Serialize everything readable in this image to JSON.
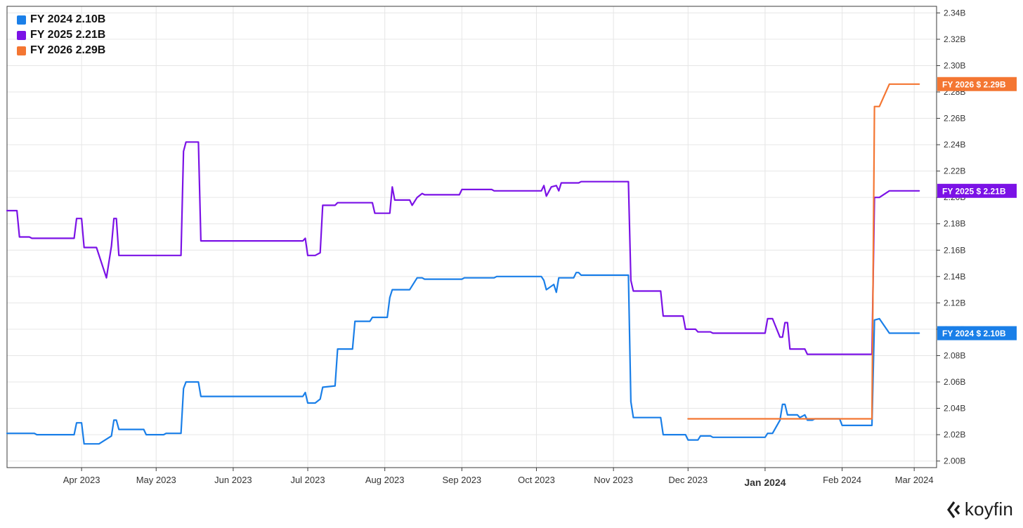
{
  "legend": [
    {
      "label": "FY 2024",
      "value": "2.10B",
      "color": "#1a7fe8"
    },
    {
      "label": "FY 2025",
      "value": "2.21B",
      "color": "#7b12e6"
    },
    {
      "label": "FY 2026",
      "value": "2.29B",
      "color": "#f47632"
    }
  ],
  "brand": {
    "name": "koyfin"
  },
  "chart_data": {
    "type": "line",
    "title": "",
    "xlabel": "",
    "ylabel": "",
    "ylim": [
      1.995,
      2.345
    ],
    "y_ticks": [
      "2.00B",
      "2.02B",
      "2.04B",
      "2.06B",
      "2.08B",
      "2.10B",
      "2.12B",
      "2.14B",
      "2.16B",
      "2.18B",
      "2.20B",
      "2.22B",
      "2.24B",
      "2.26B",
      "2.28B",
      "2.30B",
      "2.32B",
      "2.34B"
    ],
    "x_range": [
      "2023-03-02",
      "2024-03-10"
    ],
    "x_ticks": [
      {
        "date": "2023-04-01",
        "label": "Apr 2023"
      },
      {
        "date": "2023-05-01",
        "label": "May 2023"
      },
      {
        "date": "2023-06-01",
        "label": "Jun 2023"
      },
      {
        "date": "2023-07-01",
        "label": "Jul 2023"
      },
      {
        "date": "2023-08-01",
        "label": "Aug 2023"
      },
      {
        "date": "2023-09-01",
        "label": "Sep 2023"
      },
      {
        "date": "2023-10-01",
        "label": "Oct 2023"
      },
      {
        "date": "2023-11-01",
        "label": "Nov 2023"
      },
      {
        "date": "2023-12-01",
        "label": "Dec 2023"
      },
      {
        "date": "2024-01-01",
        "label": "Jan 2024",
        "bold": true
      },
      {
        "date": "2024-02-01",
        "label": "Feb 2024"
      },
      {
        "date": "2024-03-01",
        "label": "Mar 2024"
      }
    ],
    "grid": true,
    "legend_position": "top-left",
    "end_labels": [
      {
        "series": "FY 2026",
        "text": "FY 2026   $ 2.29B",
        "value": 2.286
      },
      {
        "series": "FY 2025",
        "text": "FY 2025   $ 2.21B",
        "value": 2.205
      },
      {
        "series": "FY 2024",
        "text": "FY 2024   $ 2.10B",
        "value": 2.097
      }
    ],
    "series": [
      {
        "name": "FY 2024",
        "color": "#1a7fe8",
        "points": [
          [
            "2023-03-02",
            2.021
          ],
          [
            "2023-03-13",
            2.021
          ],
          [
            "2023-03-14",
            2.02
          ],
          [
            "2023-03-29",
            2.02
          ],
          [
            "2023-03-30",
            2.029
          ],
          [
            "2023-04-01",
            2.029
          ],
          [
            "2023-04-02",
            2.013
          ],
          [
            "2023-04-08",
            2.013
          ],
          [
            "2023-04-13",
            2.019
          ],
          [
            "2023-04-14",
            2.031
          ],
          [
            "2023-04-15",
            2.031
          ],
          [
            "2023-04-16",
            2.024
          ],
          [
            "2023-04-26",
            2.024
          ],
          [
            "2023-04-27",
            2.02
          ],
          [
            "2023-05-04",
            2.02
          ],
          [
            "2023-05-05",
            2.021
          ],
          [
            "2023-05-11",
            2.021
          ],
          [
            "2023-05-12",
            2.055
          ],
          [
            "2023-05-13",
            2.06
          ],
          [
            "2023-05-18",
            2.06
          ],
          [
            "2023-05-19",
            2.049
          ],
          [
            "2023-06-29",
            2.049
          ],
          [
            "2023-06-30",
            2.052
          ],
          [
            "2023-07-01",
            2.044
          ],
          [
            "2023-07-04",
            2.044
          ],
          [
            "2023-07-06",
            2.047
          ],
          [
            "2023-07-07",
            2.056
          ],
          [
            "2023-07-12",
            2.057
          ],
          [
            "2023-07-13",
            2.085
          ],
          [
            "2023-07-19",
            2.085
          ],
          [
            "2023-07-20",
            2.106
          ],
          [
            "2023-07-26",
            2.106
          ],
          [
            "2023-07-27",
            2.109
          ],
          [
            "2023-08-02",
            2.109
          ],
          [
            "2023-08-03",
            2.124
          ],
          [
            "2023-08-04",
            2.13
          ],
          [
            "2023-08-11",
            2.13
          ],
          [
            "2023-08-14",
            2.139
          ],
          [
            "2023-08-16",
            2.139
          ],
          [
            "2023-08-17",
            2.138
          ],
          [
            "2023-09-01",
            2.138
          ],
          [
            "2023-09-02",
            2.139
          ],
          [
            "2023-09-14",
            2.139
          ],
          [
            "2023-09-15",
            2.14
          ],
          [
            "2023-10-03",
            2.14
          ],
          [
            "2023-10-04",
            2.137
          ],
          [
            "2023-10-05",
            2.13
          ],
          [
            "2023-10-08",
            2.134
          ],
          [
            "2023-10-09",
            2.128
          ],
          [
            "2023-10-10",
            2.139
          ],
          [
            "2023-10-16",
            2.139
          ],
          [
            "2023-10-17",
            2.143
          ],
          [
            "2023-10-18",
            2.143
          ],
          [
            "2023-10-19",
            2.141
          ],
          [
            "2023-11-07",
            2.141
          ],
          [
            "2023-11-08",
            2.045
          ],
          [
            "2023-11-09",
            2.033
          ],
          [
            "2023-11-20",
            2.033
          ],
          [
            "2023-11-21",
            2.02
          ],
          [
            "2023-11-30",
            2.02
          ],
          [
            "2023-12-01",
            2.016
          ],
          [
            "2023-12-05",
            2.016
          ],
          [
            "2023-12-06",
            2.019
          ],
          [
            "2023-12-10",
            2.019
          ],
          [
            "2023-12-11",
            2.018
          ],
          [
            "2024-01-01",
            2.018
          ],
          [
            "2024-01-02",
            2.021
          ],
          [
            "2024-01-04",
            2.021
          ],
          [
            "2024-01-07",
            2.031
          ],
          [
            "2024-01-08",
            2.043
          ],
          [
            "2024-01-09",
            2.043
          ],
          [
            "2024-01-10",
            2.035
          ],
          [
            "2024-01-14",
            2.035
          ],
          [
            "2024-01-15",
            2.033
          ],
          [
            "2024-01-17",
            2.035
          ],
          [
            "2024-01-18",
            2.031
          ],
          [
            "2024-01-20",
            2.031
          ],
          [
            "2024-01-21",
            2.032
          ],
          [
            "2024-01-31",
            2.032
          ],
          [
            "2024-02-01",
            2.027
          ],
          [
            "2024-02-13",
            2.027
          ],
          [
            "2024-02-14",
            2.107
          ],
          [
            "2024-02-16",
            2.108
          ],
          [
            "2024-02-20",
            2.097
          ],
          [
            "2024-03-03",
            2.097
          ]
        ]
      },
      {
        "name": "FY 2025",
        "color": "#7b12e6",
        "points": [
          [
            "2023-03-02",
            2.19
          ],
          [
            "2023-03-06",
            2.19
          ],
          [
            "2023-03-07",
            2.17
          ],
          [
            "2023-03-11",
            2.17
          ],
          [
            "2023-03-12",
            2.169
          ],
          [
            "2023-03-29",
            2.169
          ],
          [
            "2023-03-30",
            2.184
          ],
          [
            "2023-04-01",
            2.184
          ],
          [
            "2023-04-02",
            2.162
          ],
          [
            "2023-04-07",
            2.162
          ],
          [
            "2023-04-11",
            2.139
          ],
          [
            "2023-04-13",
            2.163
          ],
          [
            "2023-04-14",
            2.184
          ],
          [
            "2023-04-15",
            2.184
          ],
          [
            "2023-04-16",
            2.156
          ],
          [
            "2023-05-11",
            2.156
          ],
          [
            "2023-05-12",
            2.235
          ],
          [
            "2023-05-13",
            2.242
          ],
          [
            "2023-05-18",
            2.242
          ],
          [
            "2023-05-19",
            2.167
          ],
          [
            "2023-06-29",
            2.167
          ],
          [
            "2023-06-30",
            2.169
          ],
          [
            "2023-07-01",
            2.156
          ],
          [
            "2023-07-04",
            2.156
          ],
          [
            "2023-07-06",
            2.158
          ],
          [
            "2023-07-07",
            2.194
          ],
          [
            "2023-07-12",
            2.194
          ],
          [
            "2023-07-13",
            2.196
          ],
          [
            "2023-07-27",
            2.196
          ],
          [
            "2023-07-28",
            2.188
          ],
          [
            "2023-08-03",
            2.188
          ],
          [
            "2023-08-04",
            2.208
          ],
          [
            "2023-08-05",
            2.198
          ],
          [
            "2023-08-11",
            2.198
          ],
          [
            "2023-08-12",
            2.194
          ],
          [
            "2023-08-14",
            2.2
          ],
          [
            "2023-08-16",
            2.203
          ],
          [
            "2023-08-17",
            2.202
          ],
          [
            "2023-08-31",
            2.202
          ],
          [
            "2023-09-01",
            2.206
          ],
          [
            "2023-09-13",
            2.206
          ],
          [
            "2023-09-14",
            2.205
          ],
          [
            "2023-10-03",
            2.205
          ],
          [
            "2023-10-04",
            2.209
          ],
          [
            "2023-10-05",
            2.201
          ],
          [
            "2023-10-07",
            2.208
          ],
          [
            "2023-10-09",
            2.209
          ],
          [
            "2023-10-10",
            2.205
          ],
          [
            "2023-10-11",
            2.211
          ],
          [
            "2023-10-18",
            2.211
          ],
          [
            "2023-10-19",
            2.212
          ],
          [
            "2023-11-07",
            2.212
          ],
          [
            "2023-11-08",
            2.137
          ],
          [
            "2023-11-09",
            2.129
          ],
          [
            "2023-11-20",
            2.129
          ],
          [
            "2023-11-21",
            2.11
          ],
          [
            "2023-11-29",
            2.11
          ],
          [
            "2023-11-30",
            2.1
          ],
          [
            "2023-12-04",
            2.1
          ],
          [
            "2023-12-05",
            2.098
          ],
          [
            "2023-12-10",
            2.098
          ],
          [
            "2023-12-11",
            2.097
          ],
          [
            "2024-01-01",
            2.097
          ],
          [
            "2024-01-02",
            2.108
          ],
          [
            "2024-01-04",
            2.108
          ],
          [
            "2024-01-07",
            2.094
          ],
          [
            "2024-01-08",
            2.094
          ],
          [
            "2024-01-09",
            2.105
          ],
          [
            "2024-01-10",
            2.105
          ],
          [
            "2024-01-11",
            2.085
          ],
          [
            "2024-01-17",
            2.085
          ],
          [
            "2024-01-18",
            2.081
          ],
          [
            "2024-01-21",
            2.081
          ],
          [
            "2024-01-22",
            2.081
          ],
          [
            "2024-02-13",
            2.081
          ],
          [
            "2024-02-14",
            2.2
          ],
          [
            "2024-02-16",
            2.2
          ],
          [
            "2024-02-20",
            2.205
          ],
          [
            "2024-03-03",
            2.205
          ]
        ]
      },
      {
        "name": "FY 2026",
        "color": "#f47632",
        "points": [
          [
            "2023-12-01",
            2.032
          ],
          [
            "2024-02-13",
            2.032
          ],
          [
            "2024-02-14",
            2.269
          ],
          [
            "2024-02-16",
            2.269
          ],
          [
            "2024-02-20",
            2.286
          ],
          [
            "2024-03-03",
            2.286
          ]
        ]
      }
    ]
  }
}
